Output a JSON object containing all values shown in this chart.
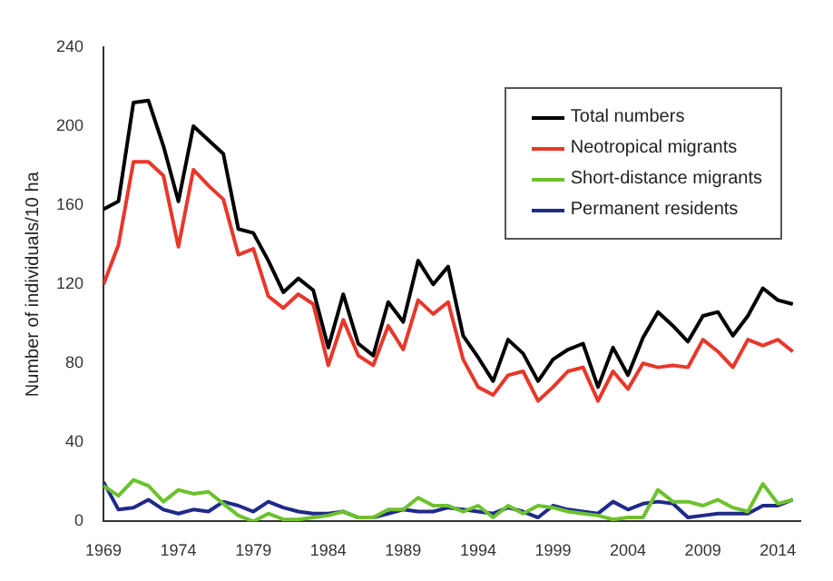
{
  "chart_data": {
    "type": "line",
    "ylabel": "Number of individuals/10 ha",
    "x": [
      1969,
      1970,
      1971,
      1972,
      1973,
      1974,
      1975,
      1976,
      1977,
      1978,
      1979,
      1980,
      1981,
      1982,
      1983,
      1984,
      1985,
      1986,
      1987,
      1988,
      1989,
      1990,
      1991,
      1992,
      1993,
      1994,
      1995,
      1996,
      1997,
      1998,
      1999,
      2000,
      2001,
      2002,
      2003,
      2004,
      2005,
      2006,
      2007,
      2008,
      2009,
      2010,
      2011,
      2012,
      2013,
      2014,
      2015
    ],
    "series": [
      {
        "name": "Total numbers",
        "color": "#000000",
        "values": [
          158,
          162,
          212,
          213,
          190,
          162,
          200,
          193,
          186,
          148,
          146,
          132,
          116,
          123,
          117,
          88,
          115,
          90,
          84,
          111,
          101,
          132,
          120,
          129,
          94,
          83,
          71,
          92,
          85,
          71,
          82,
          87,
          90,
          68,
          88,
          74,
          93,
          106,
          99,
          91,
          104,
          106,
          94,
          104,
          118,
          112,
          110
        ]
      },
      {
        "name": "Neotropical migrants",
        "color": "#e8372a",
        "values": [
          120,
          140,
          182,
          182,
          175,
          139,
          178,
          170,
          163,
          135,
          138,
          114,
          108,
          115,
          110,
          79,
          102,
          84,
          79,
          99,
          87,
          112,
          105,
          111,
          82,
          68,
          64,
          74,
          76,
          61,
          68,
          76,
          78,
          61,
          76,
          67,
          80,
          78,
          79,
          78,
          92,
          86,
          78,
          92,
          89,
          92,
          86
        ]
      },
      {
        "name": "Short-distance migrants",
        "color": "#6cc22e",
        "values": [
          18,
          13,
          21,
          18,
          10,
          16,
          14,
          15,
          9,
          3,
          0,
          4,
          1,
          1,
          2,
          3,
          5,
          2,
          2,
          6,
          6,
          12,
          8,
          8,
          5,
          8,
          2,
          8,
          4,
          8,
          7,
          5,
          4,
          3,
          1,
          2,
          2,
          16,
          10,
          10,
          8,
          11,
          7,
          5,
          19,
          9,
          11
        ]
      },
      {
        "name": "Permanent residents",
        "color": "#1f2a8a",
        "values": [
          20,
          6,
          7,
          11,
          6,
          4,
          6,
          5,
          10,
          8,
          5,
          10,
          7,
          5,
          4,
          4,
          5,
          2,
          2,
          4,
          6,
          5,
          5,
          7,
          6,
          5,
          4,
          7,
          5,
          2,
          8,
          6,
          5,
          4,
          10,
          6,
          9,
          10,
          9,
          2,
          3,
          4,
          4,
          4,
          8,
          8,
          11
        ]
      }
    ],
    "xlim": [
      1969,
      2015.5
    ],
    "xticks": [
      1969,
      1974,
      1979,
      1984,
      1989,
      1994,
      1999,
      2004,
      2009,
      2014
    ],
    "ylim": [
      0,
      240
    ],
    "yticks": [
      0,
      40,
      80,
      120,
      160,
      200,
      240
    ],
    "grid": false,
    "legend": "top right",
    "marker": "none",
    "line_style": "solid"
  }
}
